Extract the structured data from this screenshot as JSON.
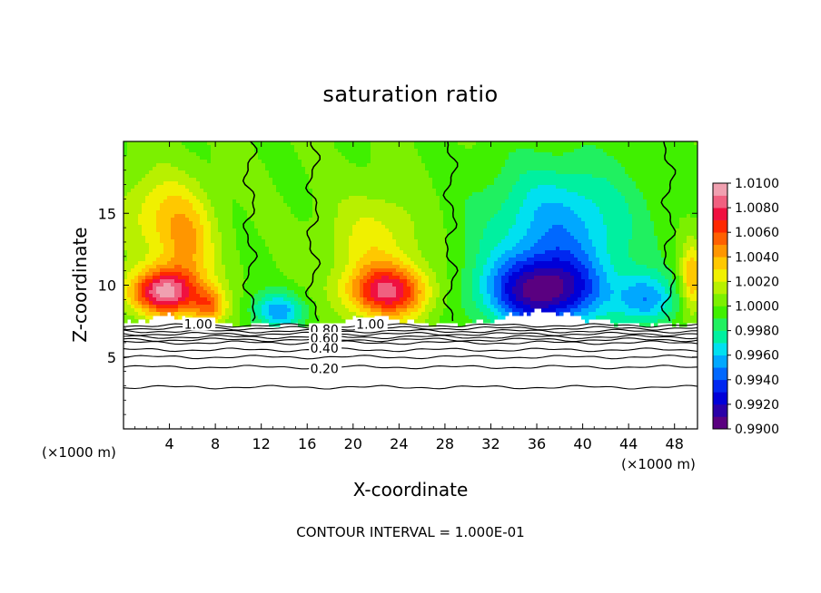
{
  "chart_data": {
    "type": "heatmap",
    "title": "saturation ratio",
    "xlabel": "X-coordinate",
    "ylabel": "Z-coordinate",
    "x_unit": "(×1000 m)",
    "y_unit": "(×1000 m)",
    "xlim": [
      0,
      50
    ],
    "ylim": [
      0,
      20
    ],
    "x_ticks": [
      4,
      8,
      12,
      16,
      20,
      24,
      28,
      32,
      36,
      40,
      44,
      48
    ],
    "y_ticks": [
      5,
      10,
      15
    ],
    "footer": "CONTOUR INTERVAL = 1.000E-01",
    "colorbar": {
      "min": 0.99,
      "max": 1.01,
      "labels": [
        "1.0100",
        "1.0080",
        "1.0060",
        "1.0040",
        "1.0020",
        "1.0000",
        "0.9980",
        "0.9960",
        "0.9940",
        "0.9920",
        "0.9900"
      ],
      "colors": [
        "#5a0080",
        "#2a00a8",
        "#0000d8",
        "#0028f0",
        "#0068ff",
        "#00a8ff",
        "#00e0f0",
        "#00f0a0",
        "#20f060",
        "#40f000",
        "#7cf000",
        "#b8f000",
        "#f0f000",
        "#ffc800",
        "#ff9600",
        "#ff6000",
        "#ff2800",
        "#f01040",
        "#f06080",
        "#f0a0b0"
      ]
    },
    "cloud_base_km": 7.3,
    "contour_lines": [
      {
        "value": 0.2,
        "label": "0.20",
        "z_km": 4.3
      },
      {
        "value": 0.4,
        "label": "0.40",
        "z_km": 5.5
      },
      {
        "value": 0.6,
        "label": "0.60",
        "z_km": 6.2
      },
      {
        "value": 0.8,
        "label": "0.80",
        "z_km": 6.6
      },
      {
        "value": 1.0,
        "label": "1.00",
        "z_km": 7.2
      }
    ],
    "extra_contours_z_km": [
      2.9,
      5.0,
      6.0,
      6.4,
      6.8,
      7.0
    ],
    "contour_label_positions": [
      {
        "label": "1.00",
        "x": 6.5,
        "z": 7.3
      },
      {
        "label": "1.00",
        "x": 21.5,
        "z": 7.3
      },
      {
        "label": "0.80",
        "x": 17.5,
        "z": 6.9
      },
      {
        "label": "0.60",
        "x": 17.5,
        "z": 6.3
      },
      {
        "label": "0.40",
        "x": 17.5,
        "z": 5.6
      },
      {
        "label": "0.20",
        "x": 17.5,
        "z": 4.2
      }
    ],
    "field_features": [
      {
        "x": 3.5,
        "z": 9.5,
        "value": 1.0085,
        "sx": 3.0,
        "sz": 1.6
      },
      {
        "x": 5.5,
        "z": 12.5,
        "value": 1.0035,
        "sx": 2.5,
        "sz": 3.5
      },
      {
        "x": 3.0,
        "z": 15.0,
        "value": 1.0025,
        "sx": 3.5,
        "sz": 3.0
      },
      {
        "x": 7.5,
        "z": 8.5,
        "value": 1.0045,
        "sx": 1.5,
        "sz": 1.3
      },
      {
        "x": 13.5,
        "z": 8.2,
        "value": 0.9955,
        "sx": 2.3,
        "sz": 1.3
      },
      {
        "x": 23.0,
        "z": 9.5,
        "value": 1.0075,
        "sx": 3.5,
        "sz": 1.8
      },
      {
        "x": 22.0,
        "z": 13.0,
        "value": 1.0025,
        "sx": 4.0,
        "sz": 3.5
      },
      {
        "x": 36.5,
        "z": 9.5,
        "value": 0.9915,
        "sx": 5.0,
        "sz": 2.5
      },
      {
        "x": 38.0,
        "z": 14.0,
        "value": 0.9955,
        "sx": 6.5,
        "sz": 4.5
      },
      {
        "x": 45.5,
        "z": 9.0,
        "value": 0.9955,
        "sx": 2.5,
        "sz": 1.8
      },
      {
        "x": 49.5,
        "z": 10.5,
        "value": 1.004,
        "sx": 1.0,
        "sz": 2.5
      }
    ],
    "boundary_contours_x": [
      11,
      16.5,
      28.5,
      47.5
    ]
  }
}
